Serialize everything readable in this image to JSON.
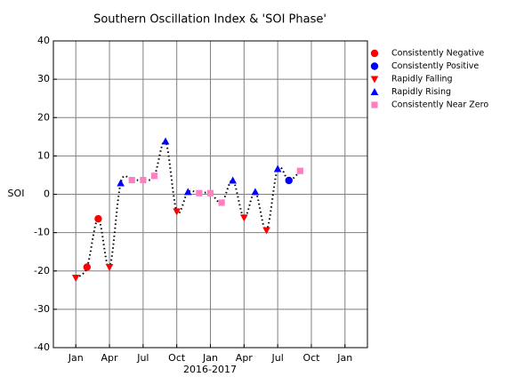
{
  "chart_data": {
    "type": "line",
    "title": "Southern Oscillation Index & 'SOI Phase'",
    "x_label": "2016-2017",
    "y_label": "SOI",
    "x": [
      0,
      1,
      2,
      3,
      4,
      5,
      6,
      7,
      8,
      9,
      10,
      11,
      12,
      13,
      14,
      15,
      16,
      17,
      18,
      19,
      20
    ],
    "values": [
      -21.8,
      -19,
      -6.4,
      -19,
      2.9,
      3.7,
      3.7,
      4.8,
      13.8,
      -4.5,
      0.6,
      0.3,
      0.3,
      -2.2,
      3.6,
      -6.1,
      0.6,
      -9.4,
      6.6,
      3.6,
      6.1
    ],
    "phase": [
      2,
      0,
      0,
      2,
      3,
      4,
      4,
      4,
      3,
      2,
      3,
      4,
      4,
      4,
      3,
      2,
      3,
      2,
      3,
      1,
      4
    ],
    "line_color": "#000000",
    "series": [
      {
        "name": "Consistently Negative",
        "color": "#ff0000",
        "marker": "circle"
      },
      {
        "name": "Consistently Positive",
        "color": "#0000ff",
        "marker": "circle"
      },
      {
        "name": "Rapidly Falling",
        "color": "#ff0000",
        "marker": "triangle-down"
      },
      {
        "name": "Rapidly Rising",
        "color": "#0000ff",
        "marker": "triangle-up"
      },
      {
        "name": "Consistently Near Zero",
        "color": "#ff80c0",
        "marker": "square"
      }
    ],
    "xlim": [
      -2,
      26
    ],
    "xticks": [
      {
        "value": 0,
        "label": "Jan"
      },
      {
        "value": 3,
        "label": "Apr"
      },
      {
        "value": 6,
        "label": "Jul"
      },
      {
        "value": 9,
        "label": "Oct"
      },
      {
        "value": 12,
        "label": "Jan"
      },
      {
        "value": 15,
        "label": "Apr"
      },
      {
        "value": 18,
        "label": "Jul"
      },
      {
        "value": 21,
        "label": "Oct"
      },
      {
        "value": 24,
        "label": "Jan"
      }
    ],
    "ylim": [
      -40,
      40
    ],
    "yticks": [
      -40,
      -30,
      -20,
      -10,
      0,
      10,
      20,
      30,
      40
    ],
    "grid": true,
    "legend": "outside-right"
  }
}
